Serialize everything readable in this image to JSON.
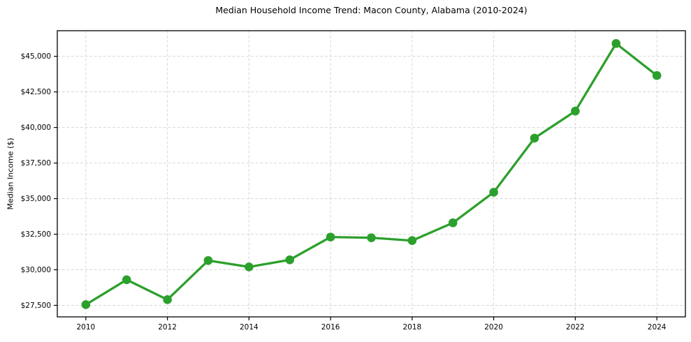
{
  "figure": {
    "background": "#ffffff"
  },
  "chart_data": {
    "type": "line",
    "title": "Median Household Income Trend: Macon County, Alabama (2010-2024)",
    "xlabel": "",
    "ylabel": "Median Income ($)",
    "x": [
      2010,
      2011,
      2012,
      2013,
      2014,
      2015,
      2016,
      2017,
      2018,
      2019,
      2020,
      2021,
      2022,
      2023,
      2024
    ],
    "y": [
      27550,
      29300,
      27900,
      30650,
      30200,
      30700,
      32300,
      32250,
      32050,
      33300,
      35450,
      39250,
      41150,
      45900,
      43650
    ],
    "series_name": "Median Household Income",
    "x_ticks": {
      "values": [
        2010,
        2012,
        2014,
        2016,
        2018,
        2020,
        2022,
        2024
      ],
      "labels": [
        "2010",
        "2012",
        "2014",
        "2016",
        "2018",
        "2020",
        "2022",
        "2024"
      ]
    },
    "y_ticks": {
      "values": [
        27500,
        30000,
        32500,
        35000,
        37500,
        40000,
        42500,
        45000
      ],
      "labels": [
        "$27,500",
        "$30,000",
        "$32,500",
        "$35,000",
        "$37,500",
        "$40,000",
        "$42,500",
        "$45,000"
      ]
    },
    "xlim": [
      2009.3,
      2024.7
    ],
    "ylim": [
      26690,
      46800
    ],
    "grid": true,
    "grid_style": "dashed",
    "legend": null,
    "marker": "circle",
    "colors": {
      "line": "#2ca02c",
      "marker": "#2ca02c",
      "grid": "#d7d7d7",
      "axis": "#000000",
      "text": "#000000",
      "background": "#ffffff"
    }
  }
}
